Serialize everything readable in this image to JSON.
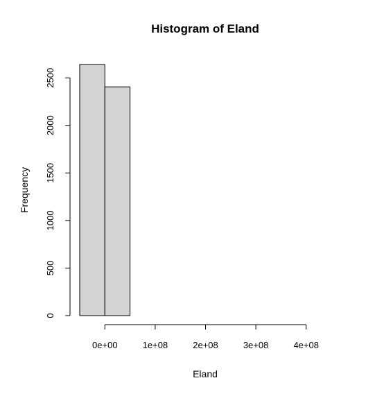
{
  "chart_data": {
    "type": "bar",
    "title": "Histogram of Eland",
    "xlabel": "Eland",
    "ylabel": "Frequency",
    "bins": [
      {
        "from": -50000000,
        "to": 0,
        "count": 2640
      },
      {
        "from": 0,
        "to": 50000000,
        "count": 2405
      },
      {
        "from": 50000000,
        "to": 100000000,
        "count": 0
      },
      {
        "from": 100000000,
        "to": 150000000,
        "count": 0
      },
      {
        "from": 150000000,
        "to": 200000000,
        "count": 0
      },
      {
        "from": 200000000,
        "to": 250000000,
        "count": 0
      },
      {
        "from": 250000000,
        "to": 300000000,
        "count": 0
      },
      {
        "from": 300000000,
        "to": 350000000,
        "count": 0
      },
      {
        "from": 350000000,
        "to": 400000000,
        "count": 0
      },
      {
        "from": 400000000,
        "to": 450000000,
        "count": 0
      }
    ],
    "xlim": [
      -50000000,
      450000000
    ],
    "ylim": [
      0,
      2640
    ],
    "x_ticks": [
      {
        "value": 0,
        "label": "0e+00"
      },
      {
        "value": 100000000,
        "label": "1e+08"
      },
      {
        "value": 200000000,
        "label": "2e+08"
      },
      {
        "value": 300000000,
        "label": "3e+08"
      },
      {
        "value": 400000000,
        "label": "4e+08"
      }
    ],
    "y_ticks": [
      {
        "value": 0,
        "label": "0"
      },
      {
        "value": 500,
        "label": "500"
      },
      {
        "value": 1000,
        "label": "1000"
      },
      {
        "value": 1500,
        "label": "1500"
      },
      {
        "value": 2000,
        "label": "2000"
      },
      {
        "value": 2500,
        "label": "2500"
      }
    ],
    "grid": false,
    "colors": {
      "bar_fill": "#d3d3d3",
      "bar_stroke": "#000000"
    }
  }
}
